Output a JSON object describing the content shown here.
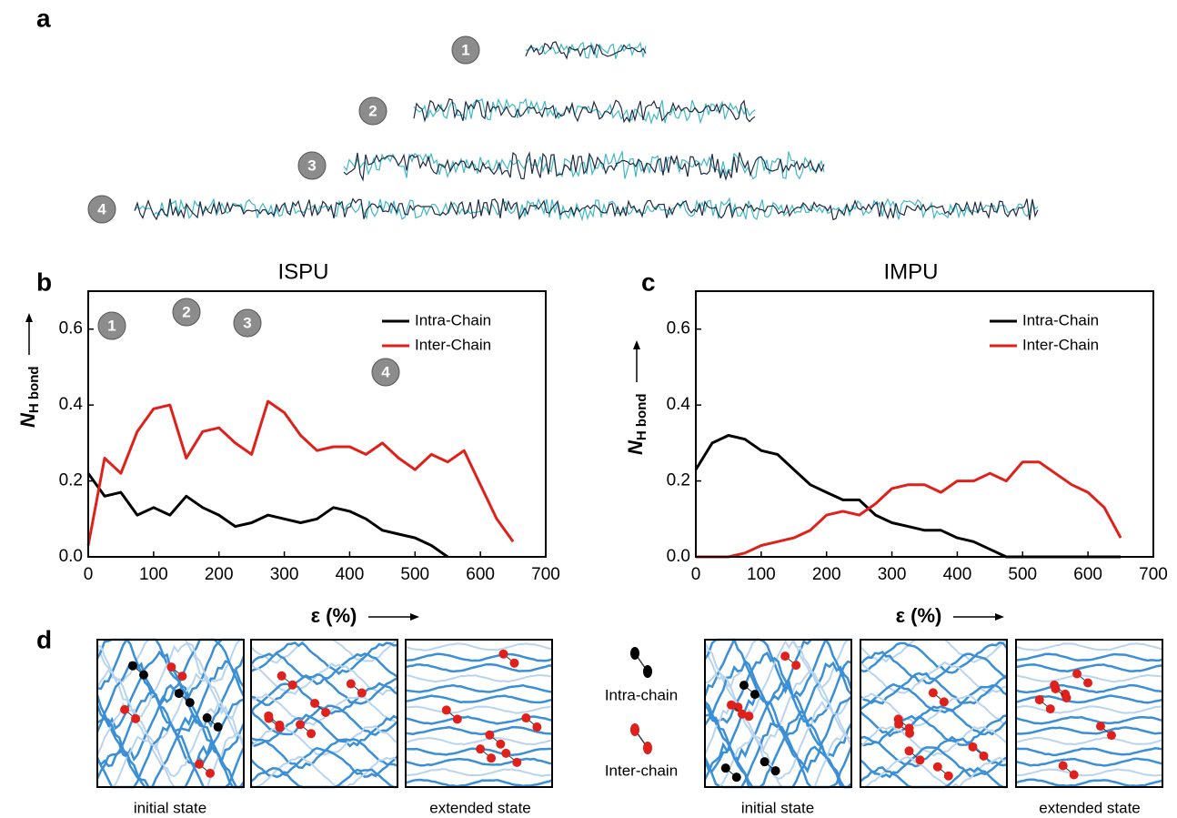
{
  "chart_data": [
    {
      "type": "line",
      "title": "ISPU",
      "ylabel_main": "N",
      "ylabel_sub": "H bond",
      "xlabel": "ε (%)",
      "x": [
        0,
        25,
        50,
        75,
        100,
        125,
        150,
        175,
        200,
        225,
        250,
        275,
        300,
        325,
        350,
        375,
        400,
        425,
        450,
        475,
        500,
        525,
        550,
        575,
        600,
        625,
        650
      ],
      "series": [
        {
          "name": "Intra-Chain",
          "color": "#000000",
          "values": [
            0.22,
            0.16,
            0.17,
            0.11,
            0.13,
            0.11,
            0.16,
            0.13,
            0.11,
            0.08,
            0.09,
            0.11,
            0.1,
            0.09,
            0.1,
            0.13,
            0.12,
            0.1,
            0.07,
            0.06,
            0.05,
            0.03,
            0.0,
            null,
            null,
            null,
            null
          ]
        },
        {
          "name": "Inter-Chain",
          "color": "#e0201b",
          "values": [
            0.03,
            0.26,
            0.22,
            0.33,
            0.39,
            0.4,
            0.26,
            0.33,
            0.34,
            0.3,
            0.27,
            0.41,
            0.38,
            0.32,
            0.28,
            0.29,
            0.29,
            0.27,
            0.3,
            0.26,
            0.23,
            0.27,
            0.25,
            0.28,
            0.19,
            0.1,
            0.04
          ]
        }
      ],
      "xlim": [
        0,
        700
      ],
      "xticks": [
        0,
        100,
        200,
        300,
        400,
        500,
        600,
        700
      ],
      "ylim": [
        0,
        0.7
      ],
      "yticks": [
        {
          "value": 0,
          "label": "0.0"
        },
        0.2,
        0.4,
        0.6
      ],
      "annotations": [
        "1",
        "2",
        "3",
        "4"
      ],
      "legend": "upper right"
    },
    {
      "type": "line",
      "title": "IMPU",
      "ylabel_main": "N",
      "ylabel_sub": "H bond",
      "xlabel": "ε (%)",
      "x": [
        0,
        25,
        50,
        75,
        100,
        125,
        150,
        175,
        200,
        225,
        250,
        275,
        300,
        325,
        350,
        375,
        400,
        425,
        450,
        475,
        500,
        525,
        550,
        575,
        600,
        625,
        650
      ],
      "series": [
        {
          "name": "Intra-Chain",
          "color": "#000000",
          "values": [
            0.23,
            0.3,
            0.32,
            0.31,
            0.28,
            0.27,
            0.23,
            0.19,
            0.17,
            0.15,
            0.15,
            0.11,
            0.09,
            0.08,
            0.07,
            0.07,
            0.05,
            0.04,
            0.02,
            0.0,
            0,
            0,
            0,
            0,
            0,
            0,
            0
          ]
        },
        {
          "name": "Inter-Chain",
          "color": "#e0201b",
          "values": [
            0,
            0,
            0,
            0.01,
            0.03,
            0.04,
            0.05,
            0.07,
            0.11,
            0.12,
            0.11,
            0.14,
            0.18,
            0.19,
            0.19,
            0.17,
            0.2,
            0.2,
            0.22,
            0.2,
            0.25,
            0.25,
            0.22,
            0.19,
            0.17,
            0.13,
            0.05
          ]
        }
      ],
      "xlim": [
        0,
        700
      ],
      "xticks": [
        0,
        100,
        200,
        300,
        400,
        500,
        600,
        700
      ],
      "ylim": [
        0,
        0.7
      ],
      "yticks": [
        {
          "value": 0,
          "label": "0.0"
        },
        0.2,
        0.4,
        0.6
      ],
      "legend": "upper right"
    }
  ],
  "figure": {
    "panel_labels": [
      "a",
      "b",
      "c",
      "d"
    ],
    "panel_a_badges": [
      "1",
      "2",
      "3",
      "4"
    ],
    "panel_d": {
      "legend": [
        "Intra-chain",
        "Inter-chain"
      ],
      "captions": [
        "initial state",
        "extended state",
        "initial state",
        "extended state"
      ]
    }
  }
}
